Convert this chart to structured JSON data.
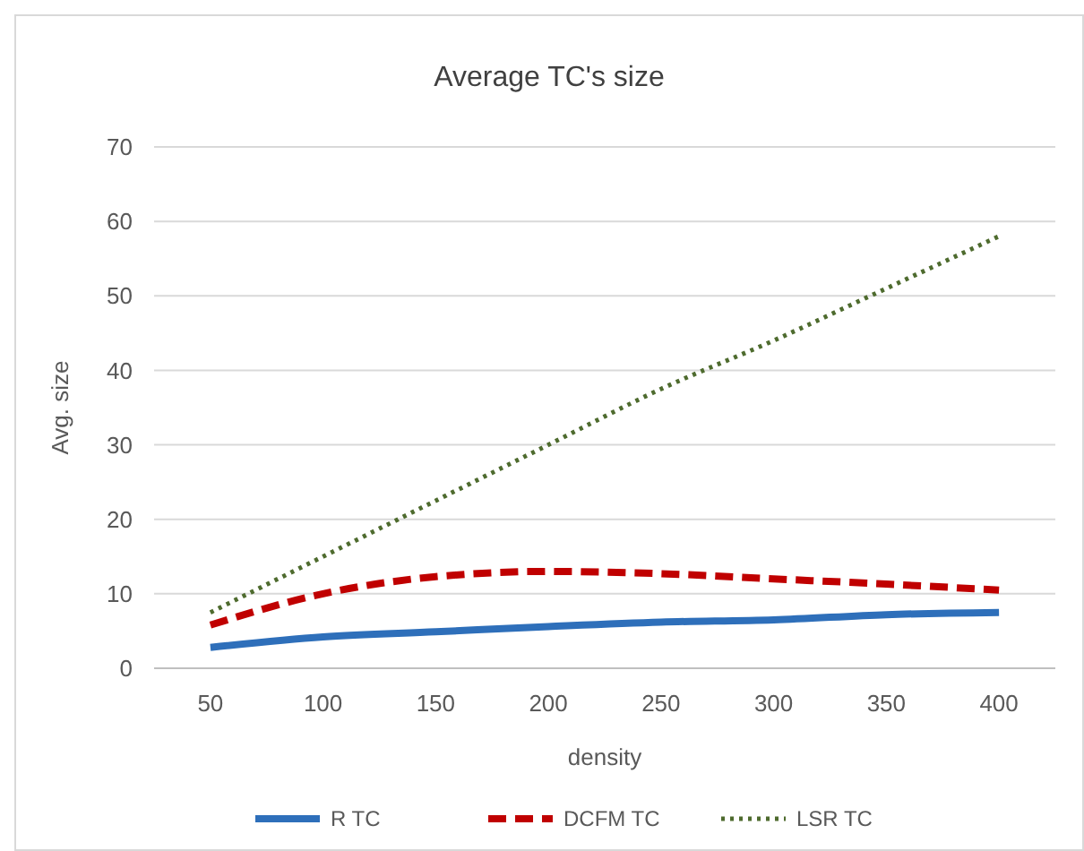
{
  "chart_data": {
    "type": "line",
    "title": "Average TC's size",
    "xlabel": "density",
    "ylabel": "Avg. size",
    "categories": [
      "50",
      "100",
      "150",
      "200",
      "250",
      "300",
      "350",
      "400"
    ],
    "series": [
      {
        "name": "R TC",
        "color": "#2e6fba",
        "line_style": "solid",
        "values": [
          2.8,
          4.2,
          4.9,
          5.6,
          6.2,
          6.5,
          7.2,
          7.5
        ]
      },
      {
        "name": "DCFM TC",
        "color": "#c00000",
        "line_style": "dashed",
        "values": [
          5.8,
          10,
          12.3,
          13,
          12.7,
          12,
          11.3,
          10.5
        ]
      },
      {
        "name": "LSR TC",
        "color": "#4e6b2e",
        "line_style": "dotted",
        "values": [
          7.5,
          15,
          22.5,
          30,
          37.5,
          44,
          51,
          58
        ]
      }
    ],
    "ylim": [
      0,
      70
    ],
    "yticks": [
      0,
      10,
      20,
      30,
      40,
      50,
      60,
      70
    ],
    "grid": "y",
    "legend": "bottom",
    "marker": "none"
  }
}
